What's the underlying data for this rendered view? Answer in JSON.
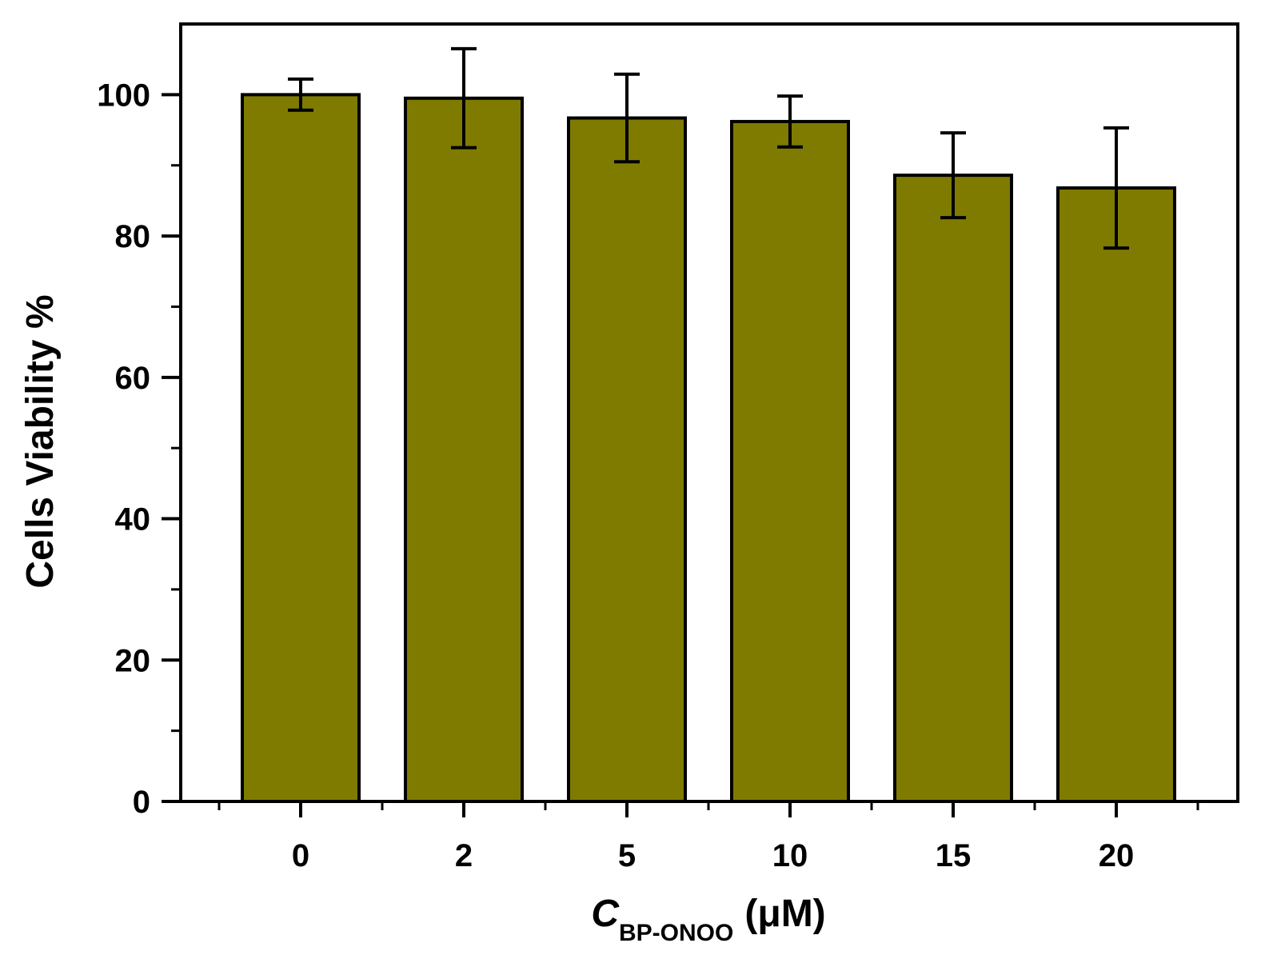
{
  "chart_data": {
    "type": "bar",
    "categories": [
      "0",
      "2",
      "5",
      "10",
      "15",
      "20"
    ],
    "series": [
      {
        "values": [
          100,
          99.5,
          96.7,
          96.2,
          88.6,
          86.8
        ],
        "errors": [
          2.2,
          7.0,
          6.2,
          3.6,
          6.0,
          8.5
        ]
      }
    ],
    "ylabel": "Cells Viability %",
    "xlabel": {
      "symbol": "C",
      "subscript": "BP-ONOO",
      "unit": "(μM)"
    },
    "ylim": [
      0,
      110
    ],
    "yticks": [
      0,
      20,
      40,
      60,
      80,
      100
    ],
    "ytick_labels": [
      "0",
      "20",
      "40",
      "60",
      "80",
      "100"
    ],
    "grid": false,
    "legend": "none",
    "colors": {
      "bar_fill": "#7f7b00",
      "bar_edge": "#000000",
      "error_bar": "#000000",
      "axis": "#000000"
    }
  }
}
